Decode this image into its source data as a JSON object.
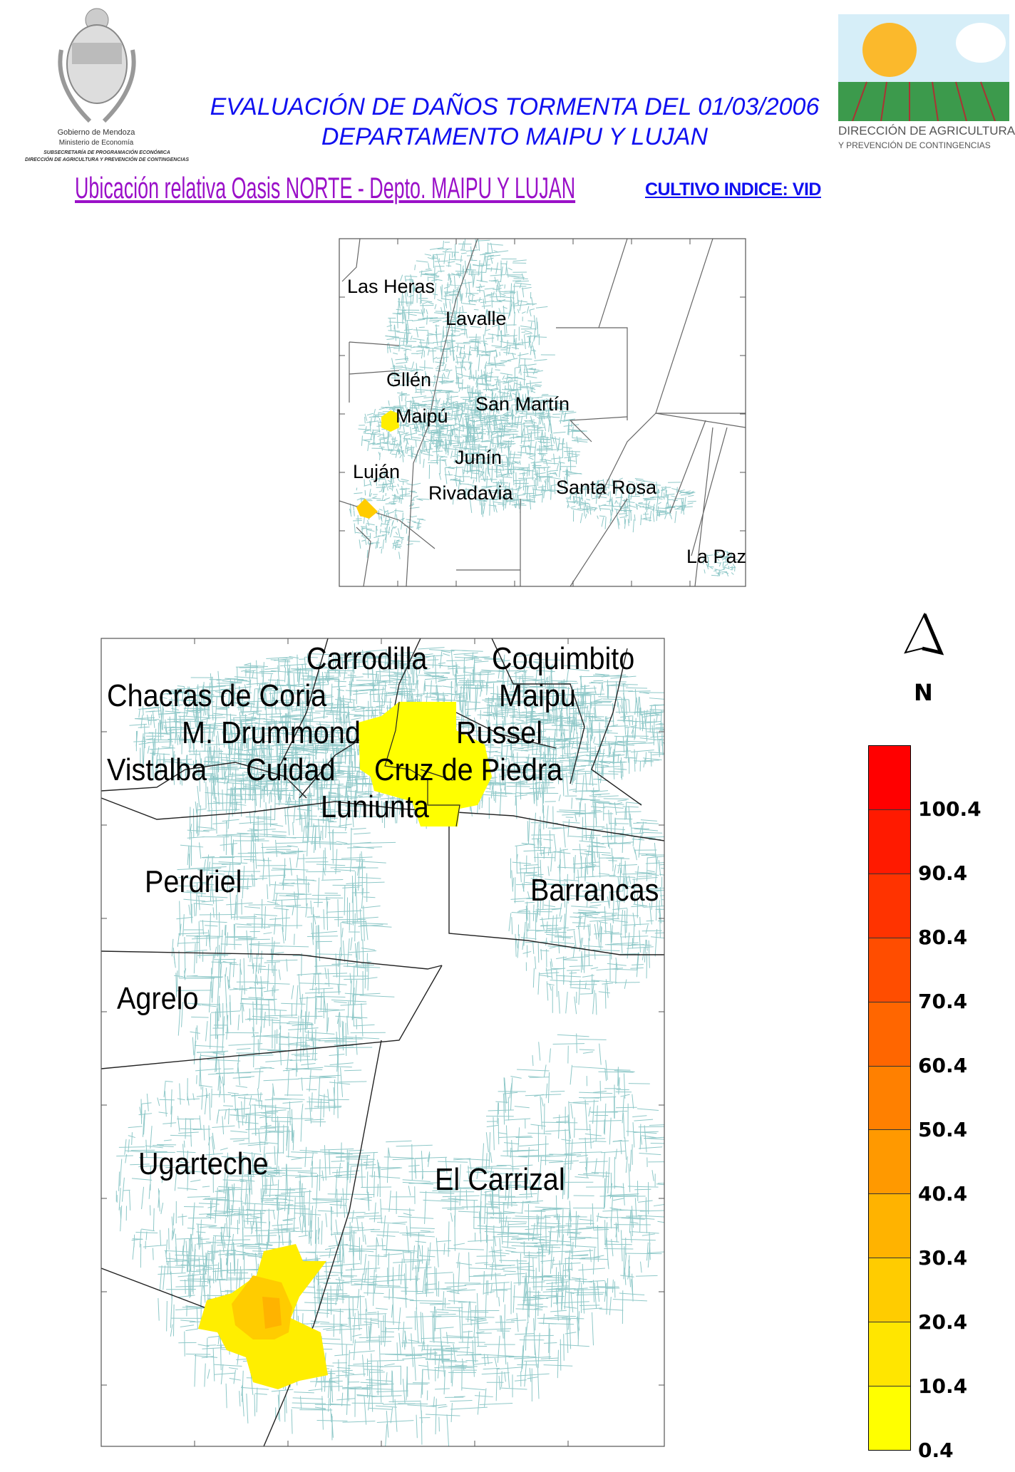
{
  "header": {
    "title_line1": "EVALUACIÓN DE DAÑOS TORMENTA DEL 01/03/2006",
    "title_line2": "DEPARTAMENTO MAIPU Y LUJAN",
    "subtitle": "Ubicación relativa Oasis NORTE - Depto. MAIPU Y LUJAN",
    "cultivo": "CULTIVO INDICE: VID",
    "left_logo": {
      "line1": "Gobierno de Mendoza",
      "line2": "Ministerio de Economía",
      "line3": "SUBSECRETARÍA DE PROGRAMACIÓN ECONÓMICA",
      "line4": "DIRECCIÓN DE AGRICULTURA Y PREVENCIÓN DE CONTINGENCIAS"
    },
    "right_logo": {
      "line1": "DIRECCIÓN DE AGRICULTURA",
      "line2": "Y PREVENCIÓN DE CONTINGENCIAS"
    }
  },
  "overview_map": {
    "labels": [
      "Las Heras",
      "Lavalle",
      "Gllén",
      "Maipú",
      "San Martín",
      "Junín",
      "Luján",
      "Rivadavia",
      "Santa Rosa",
      "La Paz"
    ]
  },
  "detail_map": {
    "labels": [
      "Carrodilla",
      "Maipu",
      "Coquimbito",
      "Chacras de Coria",
      "M. Drummond",
      "Russel",
      "Vistalba",
      "Cuidad",
      "Cruz de Piedra",
      "Luniunta",
      "Perdriel",
      "Barrancas",
      "Agrelo",
      "Ugarteche",
      "El Carrizal"
    ]
  },
  "north_arrow": {
    "label": "N"
  },
  "legend": {
    "labels": [
      "100.4",
      "90.4",
      "80.4",
      "70.4",
      "60.4",
      "50.4",
      "40.4",
      "30.4",
      "20.4",
      "10.4",
      "0.4"
    ],
    "colors": [
      "#ff0000",
      "#ff1a00",
      "#ff3300",
      "#ff4d00",
      "#ff6600",
      "#ff8000",
      "#ff9900",
      "#ffb300",
      "#ffcc00",
      "#ffe600",
      "#ffff00"
    ]
  },
  "colors": {
    "network": "#8ec8c8",
    "damage_low": "#ffff00",
    "damage_mid": "#ffcc00",
    "damage_high": "#ffb300"
  }
}
